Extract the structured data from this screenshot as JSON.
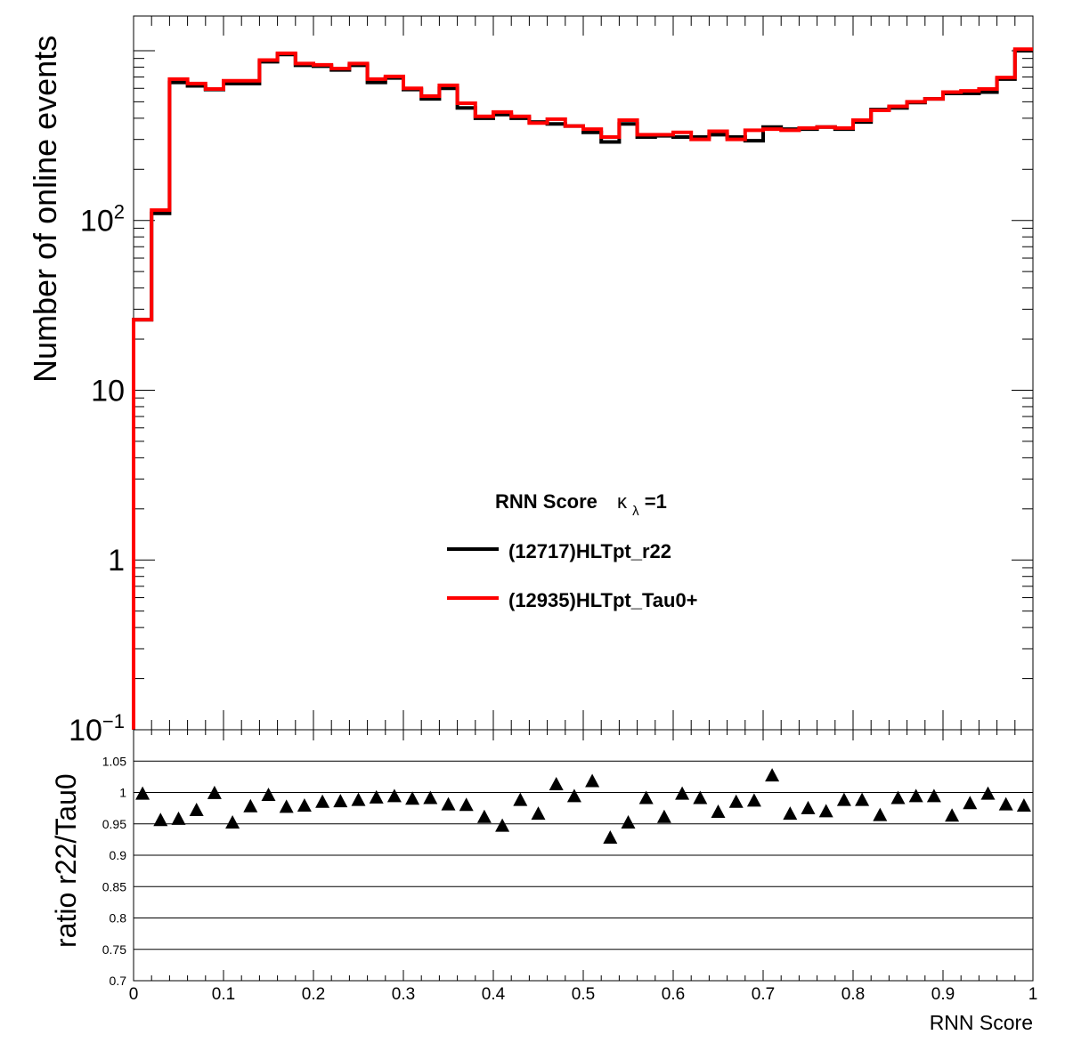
{
  "chart_data": [
    {
      "type": "line",
      "panel": "top",
      "ylabel": "Number of online events",
      "yscale": "log",
      "ylim": [
        0.1,
        1600
      ],
      "xlim": [
        0,
        1
      ],
      "y_tick_labels": [
        {
          "value": 100,
          "base": "10",
          "exp": "2"
        },
        {
          "value": 10,
          "base": "10",
          "exp": ""
        },
        {
          "value": 1,
          "base": "1",
          "exp": ""
        },
        {
          "value": 0.1,
          "base": "10",
          "exp": "−1"
        }
      ],
      "legend": {
        "title": "RNN Score",
        "title_symbol": "κ",
        "title_sub": "λ",
        "title_suffix": "=1",
        "entries": [
          "(12717)HLTpt_r22",
          "(12935)HLTpt_Tau0+"
        ]
      },
      "bin_width": 0.02,
      "series": [
        {
          "name": "(12717)HLTpt_r22",
          "color": "#000000",
          "values": [
            26,
            110,
            650,
            620,
            590,
            640,
            640,
            860,
            950,
            820,
            810,
            770,
            820,
            650,
            690,
            590,
            520,
            600,
            460,
            400,
            420,
            400,
            380,
            370,
            360,
            330,
            290,
            370,
            310,
            315,
            310,
            310,
            320,
            310,
            295,
            355,
            345,
            345,
            355,
            345,
            380,
            450,
            460,
            495,
            520,
            560,
            560,
            570,
            680,
            1000
          ]
        },
        {
          "name": "(12935)HLTpt_Tau0+",
          "color": "#ff0000",
          "values": [
            26,
            115,
            680,
            640,
            595,
            665,
            665,
            880,
            965,
            840,
            825,
            785,
            840,
            680,
            705,
            600,
            540,
            625,
            490,
            410,
            435,
            410,
            375,
            395,
            360,
            345,
            310,
            390,
            320,
            320,
            330,
            300,
            335,
            300,
            340,
            345,
            340,
            350,
            355,
            350,
            390,
            445,
            470,
            500,
            520,
            570,
            580,
            595,
            695,
            1020
          ]
        }
      ]
    },
    {
      "type": "scatter",
      "panel": "bottom",
      "xlabel": "RNN Score",
      "ylabel": "ratio r22/Tau0",
      "xlim": [
        0,
        1
      ],
      "ylim": [
        0.7,
        1.1
      ],
      "x_ticks": [
        "0",
        "0.1",
        "0.2",
        "0.3",
        "0.4",
        "0.5",
        "0.6",
        "0.7",
        "0.8",
        "0.9",
        "1"
      ],
      "y_ticks": [
        "0.7",
        "0.75",
        "0.8",
        "0.85",
        "0.9",
        "0.95",
        "1",
        "1.05"
      ],
      "marker": "triangle",
      "x": [
        0.01,
        0.03,
        0.05,
        0.07,
        0.09,
        0.11,
        0.13,
        0.15,
        0.17,
        0.19,
        0.21,
        0.23,
        0.25,
        0.27,
        0.29,
        0.31,
        0.33,
        0.35,
        0.37,
        0.39,
        0.41,
        0.43,
        0.45,
        0.47,
        0.49,
        0.51,
        0.53,
        0.55,
        0.57,
        0.59,
        0.61,
        0.63,
        0.65,
        0.67,
        0.69,
        0.71,
        0.73,
        0.75,
        0.77,
        0.79,
        0.81,
        0.83,
        0.85,
        0.87,
        0.89,
        0.91,
        0.93,
        0.95,
        0.97,
        0.99
      ],
      "y": [
        0.997,
        0.955,
        0.957,
        0.971,
        0.998,
        0.951,
        0.977,
        0.995,
        0.976,
        0.978,
        0.984,
        0.985,
        0.987,
        0.991,
        0.993,
        0.989,
        0.99,
        0.98,
        0.979,
        0.96,
        0.946,
        0.987,
        0.965,
        1.012,
        0.993,
        1.017,
        0.927,
        0.951,
        0.99,
        0.96,
        0.997,
        0.99,
        0.968,
        0.984,
        0.986,
        1.026,
        0.965,
        0.974,
        0.969,
        0.987,
        0.987,
        0.963,
        0.99,
        0.993,
        0.993,
        0.962,
        0.982,
        0.997,
        0.98,
        0.978
      ]
    }
  ]
}
